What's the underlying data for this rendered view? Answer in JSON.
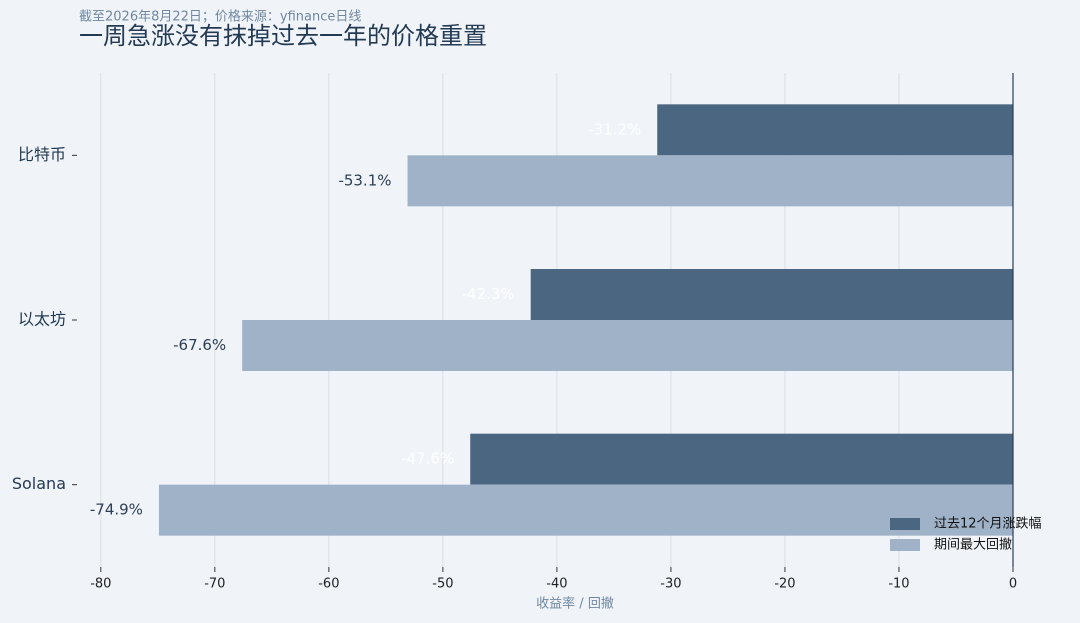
{
  "chart_data": {
    "type": "barh",
    "title": "一周急涨没有抹掉过去一年的价格重置",
    "subtitle": "截至2026年8月22日；价格来源：yfinance日线",
    "x_label": "收益率 / 回撤",
    "categories": [
      "比特币",
      "以太坊",
      "Solana"
    ],
    "series": [
      {
        "name": "过去12个月涨跌幅",
        "color": "#4a6681",
        "values": [
          -31.2,
          -42.3,
          -47.6
        ],
        "value_labels": [
          "-31.2%",
          "-42.3%",
          "-47.6%"
        ],
        "label_color": "#ffffff"
      },
      {
        "name": "期间最大回撤",
        "color": "#9fb2c8",
        "values": [
          -53.1,
          -67.6,
          -74.9
        ],
        "value_labels": [
          "-53.1%",
          "-67.6%",
          "-74.9%"
        ],
        "label_color": "#2c3e55"
      }
    ],
    "xlim": [
      -82,
      0
    ],
    "xticks": [
      -80,
      -70,
      -60,
      -50,
      -40,
      -30,
      -20,
      -10,
      0
    ],
    "grid": true,
    "legend": "lower right"
  }
}
